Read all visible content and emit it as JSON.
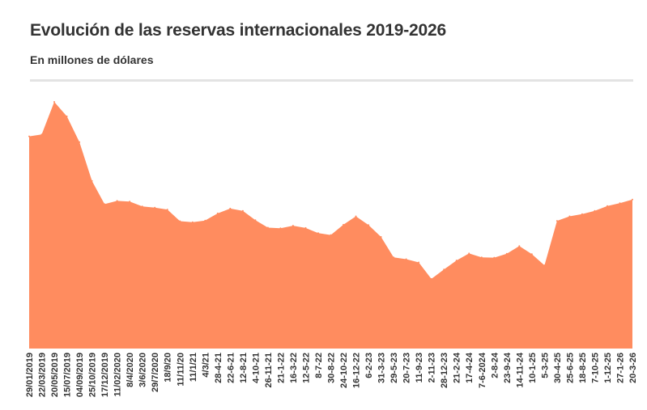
{
  "title": "Evolución de las reservas internacionales 2019-2026",
  "subtitle": "En millones de dólares",
  "colors": {
    "area": "#ff8c5f",
    "text": "#333333",
    "rule": "#e3e3e3"
  },
  "chart_data": {
    "type": "area",
    "title": "Evolución de las reservas internacionales 2019-2026",
    "subtitle": "En millones de dólares",
    "xlabel": "",
    "ylabel": "",
    "ylim": [
      0,
      80000
    ],
    "grid": false,
    "x": [
      "29/01/2019",
      "22/03/2019",
      "20/05/2019",
      "15/07/2019",
      "04/09/2019",
      "25/10/2019",
      "17/12/2019",
      "11/02/2020",
      "8/4/2020",
      "3/6/2020",
      "29/7/2020",
      "18/9/20",
      "11/11/20",
      "11/1/21",
      "4/3/21",
      "28-4-21",
      "22-6-21",
      "12-8-21",
      "4-10-21",
      "26-11-21",
      "21-1-22",
      "16-3-22",
      "12-5-22",
      "8-7-22",
      "30-8-22",
      "24-10-22",
      "16-12-22",
      "6-2-23",
      "31-3-23",
      "29-5-23",
      "20-7-23",
      "11-9-23",
      "2-11-23",
      "28-12-23",
      "21-2-24",
      "17-4-24",
      "7-6-2024",
      "2-8-24",
      "23-9-24",
      "14-11-24",
      "10-1-25",
      "5-3-25",
      "30-4-25",
      "25-6-25",
      "18-8-25",
      "7-10-25",
      "1-12-25",
      "27-1-26",
      "20-3-26"
    ],
    "series": [
      {
        "values": [
          65800,
          66400,
          76500,
          72000,
          64000,
          52000,
          44800,
          45800,
          45600,
          44100,
          43700,
          43100,
          39500,
          39200,
          39700,
          41900,
          43400,
          42700,
          39800,
          37500,
          37300,
          38100,
          37400,
          35800,
          35200,
          38400,
          41000,
          38300,
          34600,
          28300,
          27700,
          26700,
          21600,
          24500,
          27300,
          29500,
          28300,
          28200,
          29400,
          31800,
          29300,
          25800,
          39600,
          41000,
          41700,
          42700,
          44200,
          45100,
          46200
        ]
      }
    ]
  }
}
